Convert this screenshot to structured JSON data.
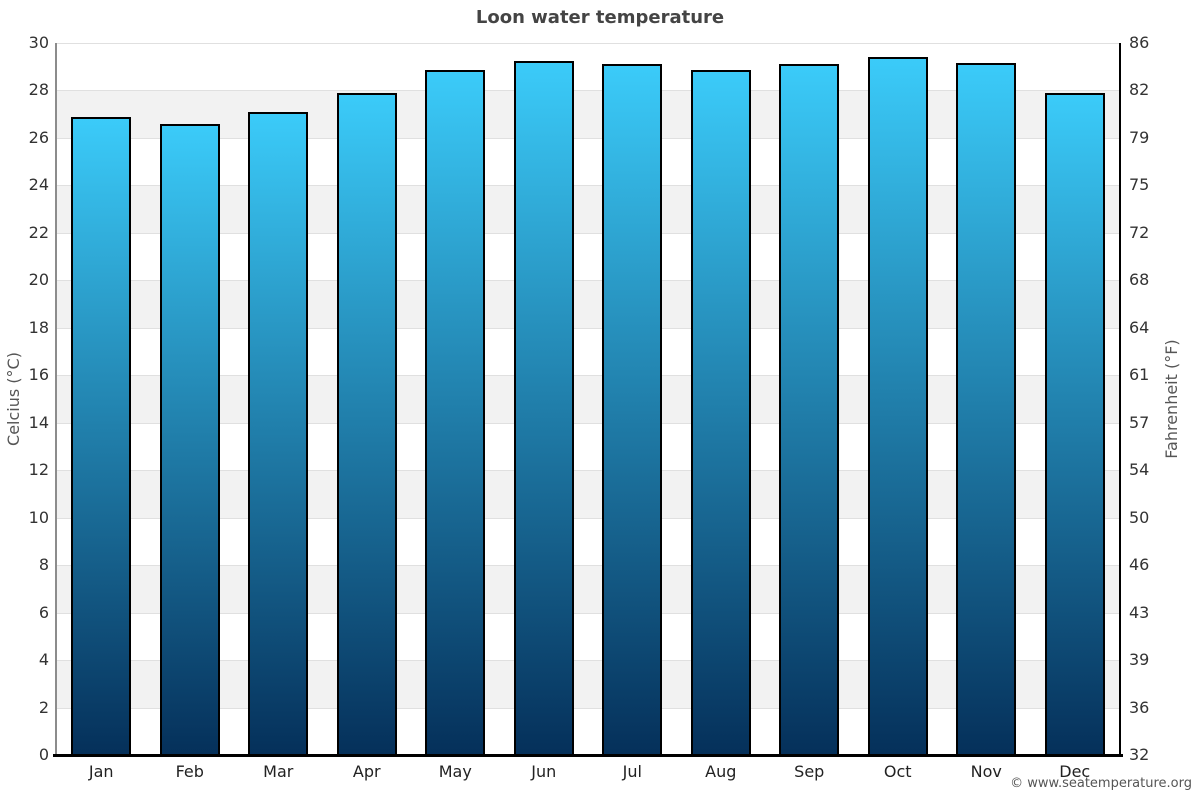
{
  "chart_data": {
    "type": "bar",
    "title": "Loon water temperature",
    "categories": [
      "Jan",
      "Feb",
      "Mar",
      "Apr",
      "May",
      "Jun",
      "Jul",
      "Aug",
      "Sep",
      "Oct",
      "Nov",
      "Dec"
    ],
    "values": [
      26.9,
      26.6,
      27.1,
      27.9,
      28.85,
      29.25,
      29.1,
      28.85,
      29.1,
      29.4,
      29.15,
      27.9
    ],
    "ylabel_left": "Celcius (°C)",
    "ylabel_right": "Fahrenheit (°F)",
    "yticks_celsius": [
      "0",
      "2",
      "4",
      "6",
      "8",
      "10",
      "12",
      "14",
      "16",
      "18",
      "20",
      "22",
      "24",
      "26",
      "28",
      "30"
    ],
    "yticks_fahrenheit": [
      "32",
      "36",
      "39",
      "43",
      "46",
      "50",
      "54",
      "57",
      "61",
      "64",
      "68",
      "72",
      "75",
      "79",
      "82",
      "86"
    ],
    "ylim": [
      0,
      30
    ],
    "grid": true,
    "legend_position": "none",
    "colors": {
      "bar_gradient_top": "#3bcbf9",
      "bar_gradient_bottom": "#05305a",
      "bar_border": "#000000",
      "band_alt": "#f2f2f2",
      "gridline": "#e0e0e0",
      "axis_left_spine": "#8c8c8c",
      "axis_right_spine": "#000000",
      "axis_bottom_spine": "#000000",
      "title_text": "#444444",
      "tick_text": "#333333",
      "axis_label_text": "#555555"
    }
  },
  "footer": {
    "text": "© www.seatemperature.org"
  }
}
